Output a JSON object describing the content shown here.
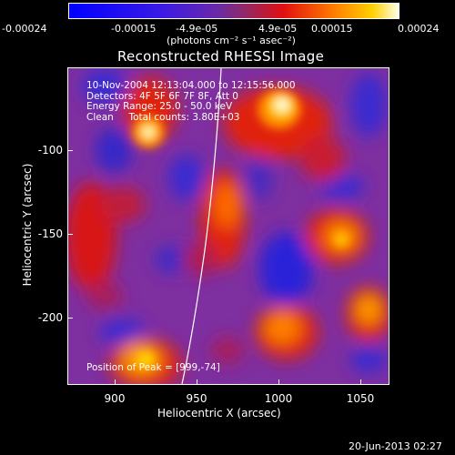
{
  "colorbar": {
    "ticks": [
      "-0.00024",
      "-0.00015",
      "-4.9e-05",
      "4.9e-05",
      "0.00015",
      "0.00024"
    ],
    "unit_label": "(photons cm⁻² s⁻¹ asec⁻²)"
  },
  "title": "Reconstructed RHESSI Image",
  "info": {
    "line1": "10-Nov-2004 12:13:04.000 to 12:15:56.000",
    "line2": "Detectors: 4F 5F 6F 7F 8F, Att 0",
    "line3": "Energy Range: 25.0 - 50.0 keV",
    "line4": "Clean     Total counts: 3.80E+03"
  },
  "peak_label": "Position of Peak = [999,-74]",
  "axes": {
    "xlabel": "Heliocentric X (arcsec)",
    "ylabel": "Heliocentric Y (arcsec)",
    "xticks": [
      "900",
      "950",
      "1000",
      "1050"
    ],
    "yticks": [
      "-100",
      "-150",
      "-200"
    ]
  },
  "timestamp": "20-Jun-2013 02:27",
  "colors": {
    "background": "#000000",
    "negative": "#1a1aff",
    "zero": "#7a2f9c",
    "positive": "#ff3300",
    "peak": "#ffffcc"
  }
}
